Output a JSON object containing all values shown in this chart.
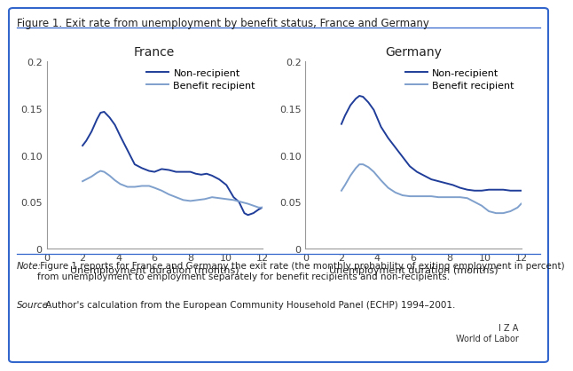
{
  "title": "Figure 1. Exit rate from unemployment by benefit status, France and Germany",
  "note_bold": "Note:",
  "note_rest": " Figure 1 reports for France and Germany the exit rate (the monthly probability of exiting employment in percent)\nfrom unemployment to employment separately for benefit recipients and non-recipients.",
  "source_bold": "Source:",
  "source_rest": " Author's calculation from the European Community Household Panel (ECHP) 1994–2001.",
  "iza_line1": "I Z A",
  "iza_line2": "World of Labor",
  "subplot_titles": [
    "France",
    "Germany"
  ],
  "xlabel": "Unemployment duration (months)",
  "legend_labels": [
    "Non-recipient",
    "Benefit recipient"
  ],
  "color_dark": "#1f3d99",
  "color_light": "#7fa0cc",
  "border_color": "#3366cc",
  "ylim": [
    0,
    0.2
  ],
  "xlim": [
    0,
    12
  ],
  "xticks": [
    0,
    2,
    4,
    6,
    8,
    10,
    12
  ],
  "yticks": [
    0,
    0.05,
    0.1,
    0.15,
    0.2
  ],
  "ytick_labels": [
    "0",
    "0.05",
    "0.10",
    "0.15",
    "0.2"
  ],
  "xtick_labels": [
    "0",
    "2",
    "4",
    "6",
    "8",
    "10",
    "12"
  ],
  "france_nonrecipient_x": [
    2.0,
    2.2,
    2.5,
    2.8,
    3.0,
    3.2,
    3.5,
    3.8,
    4.1,
    4.5,
    4.9,
    5.3,
    5.7,
    6.0,
    6.4,
    6.8,
    7.2,
    7.6,
    8.0,
    8.3,
    8.6,
    8.9,
    9.2,
    9.6,
    10.0,
    10.4,
    10.7,
    11.0,
    11.2,
    11.5,
    11.8,
    12.0
  ],
  "france_nonrecipient_y": [
    0.11,
    0.115,
    0.125,
    0.138,
    0.145,
    0.146,
    0.14,
    0.132,
    0.12,
    0.105,
    0.09,
    0.086,
    0.083,
    0.082,
    0.085,
    0.084,
    0.082,
    0.082,
    0.082,
    0.08,
    0.079,
    0.08,
    0.078,
    0.074,
    0.068,
    0.055,
    0.05,
    0.038,
    0.036,
    0.038,
    0.042,
    0.044
  ],
  "france_benefit_x": [
    2.0,
    2.2,
    2.5,
    2.8,
    3.0,
    3.2,
    3.5,
    3.8,
    4.1,
    4.5,
    4.9,
    5.3,
    5.7,
    6.0,
    6.4,
    6.8,
    7.2,
    7.6,
    8.0,
    8.4,
    8.8,
    9.2,
    9.6,
    10.0,
    10.4,
    10.8,
    11.2,
    11.5,
    11.8,
    12.0
  ],
  "france_benefit_y": [
    0.072,
    0.074,
    0.077,
    0.081,
    0.083,
    0.082,
    0.078,
    0.073,
    0.069,
    0.066,
    0.066,
    0.067,
    0.067,
    0.065,
    0.062,
    0.058,
    0.055,
    0.052,
    0.051,
    0.052,
    0.053,
    0.055,
    0.054,
    0.053,
    0.052,
    0.05,
    0.048,
    0.046,
    0.044,
    0.044
  ],
  "germany_nonrecipient_x": [
    2.0,
    2.2,
    2.5,
    2.8,
    3.0,
    3.2,
    3.5,
    3.8,
    4.2,
    4.6,
    5.0,
    5.4,
    5.8,
    6.2,
    6.6,
    7.0,
    7.4,
    7.8,
    8.2,
    8.6,
    9.0,
    9.4,
    9.8,
    10.2,
    10.6,
    11.0,
    11.4,
    11.8,
    12.0
  ],
  "germany_nonrecipient_y": [
    0.133,
    0.142,
    0.153,
    0.16,
    0.163,
    0.162,
    0.156,
    0.148,
    0.13,
    0.118,
    0.108,
    0.098,
    0.088,
    0.082,
    0.078,
    0.074,
    0.072,
    0.07,
    0.068,
    0.065,
    0.063,
    0.062,
    0.062,
    0.063,
    0.063,
    0.063,
    0.062,
    0.062,
    0.062
  ],
  "germany_benefit_x": [
    2.0,
    2.2,
    2.5,
    2.8,
    3.0,
    3.2,
    3.5,
    3.8,
    4.2,
    4.6,
    5.0,
    5.4,
    5.8,
    6.2,
    6.6,
    7.0,
    7.4,
    7.8,
    8.2,
    8.6,
    9.0,
    9.4,
    9.8,
    10.2,
    10.6,
    11.0,
    11.4,
    11.8,
    12.0
  ],
  "germany_benefit_y": [
    0.062,
    0.068,
    0.078,
    0.086,
    0.09,
    0.09,
    0.087,
    0.082,
    0.073,
    0.065,
    0.06,
    0.057,
    0.056,
    0.056,
    0.056,
    0.056,
    0.055,
    0.055,
    0.055,
    0.055,
    0.054,
    0.05,
    0.046,
    0.04,
    0.038,
    0.038,
    0.04,
    0.044,
    0.048
  ]
}
